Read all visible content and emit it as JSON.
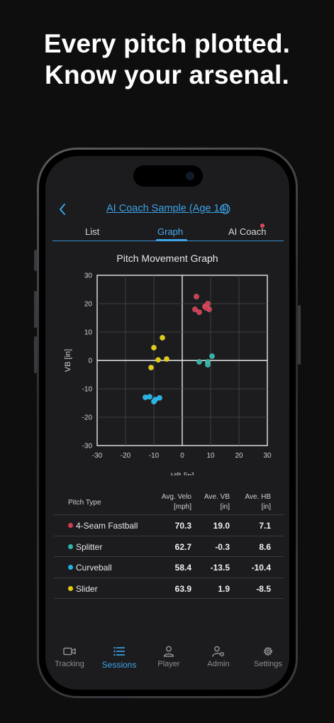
{
  "headline": {
    "line1": "Every pitch plotted.",
    "line2": "Know your arsenal."
  },
  "header": {
    "back_icon": "chevron-left-icon",
    "title": "AI Coach Sample (Age 14)",
    "info_icon": "info-circle-icon"
  },
  "tabs": [
    {
      "label": "List",
      "active": false
    },
    {
      "label": "Graph",
      "active": true
    },
    {
      "label": "AI Coach",
      "active": false,
      "badge": true
    }
  ],
  "chart_data": {
    "type": "scatter",
    "title": "Pitch Movement Graph",
    "xlabel": "HB [in]",
    "ylabel": "VB [in]",
    "xlim": [
      -30,
      30
    ],
    "ylim": [
      -30,
      30
    ],
    "xticks": [
      "-30",
      "-20",
      "-10",
      "0",
      "10",
      "20",
      "30"
    ],
    "yticks": [
      "30",
      "20",
      "10",
      "0",
      "-10",
      "-20",
      "-30"
    ],
    "grid": true,
    "series": [
      {
        "name": "4-Seam Fastball",
        "color": "#d13a4f",
        "points": [
          [
            5,
            22.5
          ],
          [
            4.5,
            18
          ],
          [
            6,
            17
          ],
          [
            8,
            19
          ],
          [
            9,
            20
          ],
          [
            9.5,
            18
          ],
          [
            8.5,
            18.5
          ]
        ]
      },
      {
        "name": "Splitter",
        "color": "#2fb3a8",
        "points": [
          [
            6,
            -0.5
          ],
          [
            9,
            -0.5
          ],
          [
            9,
            -1.5
          ],
          [
            10.5,
            1.5
          ]
        ]
      },
      {
        "name": "Curveball",
        "color": "#20b4e6",
        "points": [
          [
            -13,
            -13
          ],
          [
            -11.5,
            -12.8
          ],
          [
            -10,
            -14.5
          ],
          [
            -9.5,
            -13.8
          ],
          [
            -8,
            -13.2
          ]
        ]
      },
      {
        "name": "Slider",
        "color": "#e0cc10",
        "points": [
          [
            -7,
            8
          ],
          [
            -10,
            4.5
          ],
          [
            -8.5,
            0.2
          ],
          [
            -5.5,
            0.5
          ],
          [
            -11,
            -2.5
          ]
        ]
      }
    ]
  },
  "table": {
    "headers": {
      "type": "Pitch Type",
      "velo1": "Avg. Velo",
      "velo2": "[mph]",
      "vb1": "Ave. VB",
      "vb2": "[in]",
      "hb1": "Ave. HB",
      "hb2": "[in]"
    },
    "rows": [
      {
        "name": "4-Seam Fastball",
        "color": "#d13a4f",
        "velo": "70.3",
        "vb": "19.0",
        "hb": "7.1"
      },
      {
        "name": "Splitter",
        "color": "#2fb3a8",
        "velo": "62.7",
        "vb": "-0.3",
        "hb": "8.6"
      },
      {
        "name": "Curveball",
        "color": "#20b4e6",
        "velo": "58.4",
        "vb": "-13.5",
        "hb": "-10.4"
      },
      {
        "name": "Slider",
        "color": "#e0cc10",
        "velo": "63.9",
        "vb": "1.9",
        "hb": "-8.5"
      }
    ]
  },
  "tabbar": [
    {
      "label": "Tracking",
      "icon": "video-camera-icon",
      "active": false
    },
    {
      "label": "Sessions",
      "icon": "list-icon",
      "active": true
    },
    {
      "label": "Player",
      "icon": "person-icon",
      "active": false
    },
    {
      "label": "Admin",
      "icon": "person-gear-icon",
      "active": false
    },
    {
      "label": "Settings",
      "icon": "gear-icon",
      "active": false
    }
  ],
  "colors": {
    "accent": "#3fa4ec",
    "background": "#1c1c1e",
    "page": "#0e0e0f"
  }
}
